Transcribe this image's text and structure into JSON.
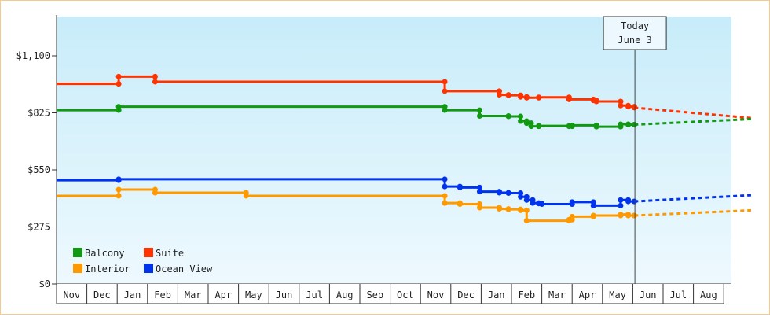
{
  "chart_data": {
    "type": "line",
    "y_ticks": [
      {
        "value": 0,
        "label": "$0"
      },
      {
        "value": 275,
        "label": "$275"
      },
      {
        "value": 550,
        "label": "$550"
      },
      {
        "value": 825,
        "label": "$825"
      },
      {
        "value": 1100,
        "label": "$1,100"
      }
    ],
    "ylim": [
      0,
      1100
    ],
    "months": [
      "Nov",
      "Dec",
      "Jan",
      "Feb",
      "Mar",
      "Apr",
      "May",
      "Jun",
      "Jul",
      "Aug",
      "Sep",
      "Oct",
      "Nov",
      "Dec",
      "Jan",
      "Feb",
      "Mar",
      "Apr",
      "May",
      "Jun",
      "Jul",
      "Aug"
    ],
    "x_range": [
      0,
      22.9
    ],
    "today": {
      "x": 19.07,
      "line1": "Today",
      "line2": "June 3"
    },
    "legend": [
      {
        "name": "Balcony",
        "color": "#119911"
      },
      {
        "name": "Suite",
        "color": "#ff3300"
      },
      {
        "name": "Interior",
        "color": "#ff9900"
      },
      {
        "name": "Ocean View",
        "color": "#0033ee"
      }
    ],
    "series": [
      {
        "name": "Suite",
        "color": "#ff3300",
        "points": [
          [
            0,
            965
          ],
          [
            2.05,
            965
          ],
          [
            2.05,
            1000
          ],
          [
            3.25,
            1000
          ],
          [
            3.25,
            975
          ],
          [
            12.8,
            975
          ],
          [
            12.8,
            930
          ],
          [
            13.95,
            930
          ],
          [
            14.6,
            912
          ],
          [
            14.9,
            910
          ],
          [
            15.3,
            902
          ],
          [
            15.5,
            898
          ],
          [
            15.9,
            900
          ],
          [
            16.9,
            890
          ],
          [
            17.7,
            885
          ],
          [
            17.8,
            880
          ],
          [
            18.6,
            860
          ],
          [
            18.85,
            855
          ],
          [
            19.05,
            850
          ]
        ],
        "projection": [
          [
            19.05,
            850
          ],
          [
            22.9,
            800
          ]
        ]
      },
      {
        "name": "Balcony",
        "color": "#119911",
        "points": [
          [
            0,
            838
          ],
          [
            2.05,
            838
          ],
          [
            2.05,
            855
          ],
          [
            12.8,
            855
          ],
          [
            12.8,
            838
          ],
          [
            13.95,
            838
          ],
          [
            13.95,
            810
          ],
          [
            14.6,
            810
          ],
          [
            14.9,
            808
          ],
          [
            15.3,
            785
          ],
          [
            15.5,
            775
          ],
          [
            15.65,
            760
          ],
          [
            15.9,
            762
          ],
          [
            16.0,
            762
          ],
          [
            16.9,
            760
          ],
          [
            17.0,
            765
          ],
          [
            17.7,
            765
          ],
          [
            17.8,
            758
          ],
          [
            18.6,
            770
          ],
          [
            18.85,
            768
          ],
          [
            19.05,
            768
          ]
        ],
        "projection": [
          [
            19.05,
            768
          ],
          [
            22.9,
            795
          ]
        ]
      },
      {
        "name": "Ocean View",
        "color": "#0033ee",
        "points": [
          [
            0,
            500
          ],
          [
            2.05,
            500
          ],
          [
            2.05,
            505
          ],
          [
            12.8,
            505
          ],
          [
            12.8,
            470
          ],
          [
            13.3,
            465
          ],
          [
            13.95,
            445
          ],
          [
            14.6,
            440
          ],
          [
            14.9,
            438
          ],
          [
            15.3,
            420
          ],
          [
            15.5,
            405
          ],
          [
            15.7,
            390
          ],
          [
            15.9,
            388
          ],
          [
            16.0,
            385
          ],
          [
            16.9,
            385
          ],
          [
            17.0,
            395
          ],
          [
            17.5,
            395
          ],
          [
            17.7,
            378
          ],
          [
            18.6,
            405
          ],
          [
            18.85,
            398
          ],
          [
            19.05,
            398
          ]
        ],
        "projection": [
          [
            19.05,
            398
          ],
          [
            22.9,
            428
          ]
        ]
      },
      {
        "name": "Interior",
        "color": "#ff9900",
        "points": [
          [
            0,
            425
          ],
          [
            2.05,
            425
          ],
          [
            2.05,
            455
          ],
          [
            3.25,
            455
          ],
          [
            3.25,
            440
          ],
          [
            6.25,
            440
          ],
          [
            6.25,
            425
          ],
          [
            12.8,
            425
          ],
          [
            12.8,
            390
          ],
          [
            13.3,
            385
          ],
          [
            13.95,
            368
          ],
          [
            14.6,
            362
          ],
          [
            14.9,
            360
          ],
          [
            15.3,
            355
          ],
          [
            15.5,
            305
          ],
          [
            15.7,
            305
          ],
          [
            16.0,
            305
          ],
          [
            16.9,
            310
          ],
          [
            17.0,
            325
          ],
          [
            17.7,
            330
          ],
          [
            17.8,
            330
          ],
          [
            18.6,
            335
          ],
          [
            18.85,
            330
          ],
          [
            19.05,
            330
          ]
        ],
        "projection": [
          [
            19.05,
            330
          ],
          [
            22.9,
            355
          ]
        ]
      }
    ]
  }
}
